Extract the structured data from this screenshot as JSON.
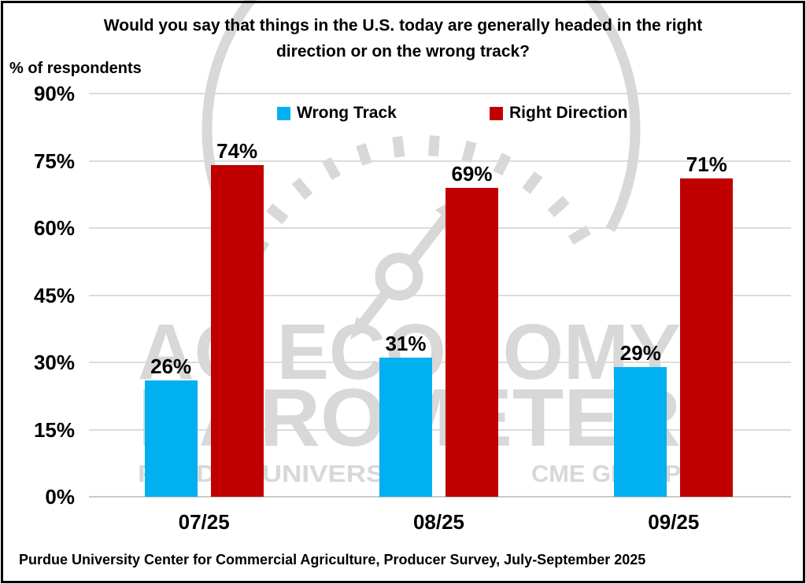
{
  "chart_data": {
    "type": "bar",
    "title": "Would you say that things in the U.S. today are generally headed in the right direction or on the wrong track?",
    "ylabel": "% of respondents",
    "categories": [
      "07/25",
      "08/25",
      "09/25"
    ],
    "series": [
      {
        "name": "Wrong Track",
        "color": "#00B0F0",
        "values": [
          26,
          31,
          29
        ],
        "labels": [
          "26%",
          "31%",
          "29%"
        ]
      },
      {
        "name": "Right Direction",
        "color": "#C00000",
        "values": [
          74,
          69,
          71
        ],
        "labels": [
          "74%",
          "69%",
          "71%"
        ]
      }
    ],
    "ylim": [
      0,
      90
    ],
    "yticks": [
      0,
      15,
      30,
      45,
      60,
      75,
      90
    ],
    "ytick_labels": [
      "0%",
      "15%",
      "30%",
      "45%",
      "60%",
      "75%",
      "90%"
    ],
    "grid": true,
    "legend_position": "top-center",
    "source": "Purdue University Center for Commercial Agriculture, Producer Survey, July-September 2025"
  },
  "watermark": {
    "brand_line1": "AG ECONOMY",
    "brand_line2": "BAROMETER",
    "org_left": "PURDUE UNIVERSITY",
    "org_right": "CME GROUP",
    "color": "#D8D8D8"
  },
  "colors": {
    "grid": "#DCDCDC",
    "axis": "#C9C9C9",
    "text": "#000000",
    "background": "#FFFFFF",
    "border": "#000000"
  }
}
